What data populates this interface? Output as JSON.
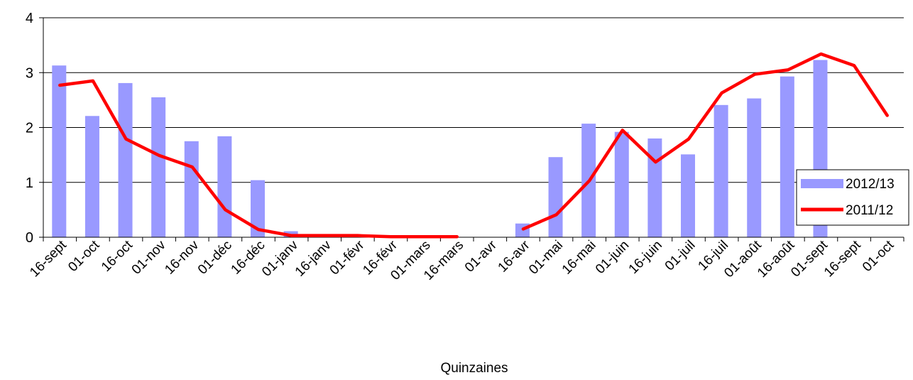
{
  "chart_data": {
    "type": "bar",
    "title": "",
    "xlabel": "Quinzaines",
    "ylabel": "",
    "ylim": [
      0,
      4
    ],
    "yticks": [
      "0",
      "1",
      "2",
      "3",
      "4"
    ],
    "grid": true,
    "legend_position": "right",
    "categories": [
      "16-sept",
      "01-oct",
      "16-oct",
      "01-nov",
      "16-nov",
      "01-déc",
      "16-déc",
      "01-janv",
      "16-janv",
      "01-févr",
      "16-févr",
      "01-mars",
      "16-mars",
      "01-avr",
      "16-avr",
      "01-mai",
      "16-mai",
      "01-juin",
      "16-juin",
      "01-juil",
      "16-juil",
      "01-août",
      "16-août",
      "01-sept",
      "16-sept",
      "01-oct"
    ],
    "series": [
      {
        "name": "2012/13",
        "type": "bar",
        "color": "#9999ff",
        "values": [
          3.13,
          2.21,
          2.81,
          2.55,
          1.75,
          1.84,
          1.04,
          0.11,
          0,
          0,
          0,
          0,
          0,
          0,
          0.25,
          1.46,
          2.07,
          1.92,
          1.8,
          1.51,
          2.41,
          2.53,
          2.93,
          3.23,
          null,
          null
        ]
      },
      {
        "name": "2011/12",
        "type": "line",
        "color": "#ff0000",
        "values": [
          2.77,
          2.85,
          1.79,
          1.49,
          1.28,
          0.5,
          0.14,
          0.03,
          0.03,
          0.03,
          0.01,
          0.01,
          0.01,
          null,
          0.15,
          0.41,
          1.03,
          1.95,
          1.37,
          1.79,
          2.63,
          2.97,
          3.05,
          3.34,
          3.13,
          2.22
        ]
      }
    ]
  }
}
